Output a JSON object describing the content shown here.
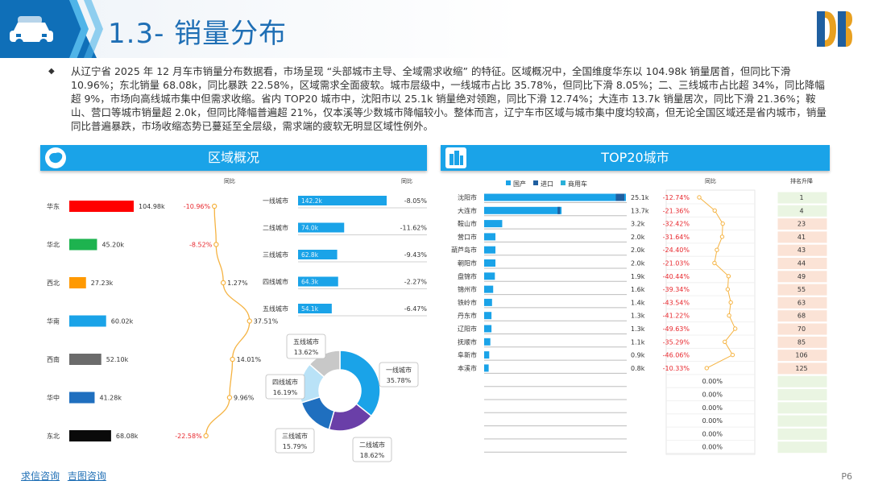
{
  "page": {
    "title": "1.3- 销量分布",
    "summary": "从辽宁省 2025 年 12 月车市销量分布数据看，市场呈现 “头部城市主导、全域需求收缩” 的特征。区域概况中，全国维度华东以 104.98k 销量居首，但同比下滑 10.96%；东北销量 68.08k，同比暴跌 22.58%，区域需求全面疲软。城市层级中，一线城市占比 35.78%，但同比下滑 8.05%；二、三线城市占比超 34%，同比降幅超 9%，市场向高线城市集中但需求收缩。省内 TOP20 城市中，沈阳市以 25.1k 销量绝对领跑，同比下滑 12.74%；大连市 13.7k 销量居次，同比下滑 21.36%；鞍山、营口等城市销量超 2.0k，但同比降幅普遍超 21%，仅本溪等少数城市降幅较小。整体而言，辽宁车市区域与城市集中度均较高，但无论全国区域还是省内城市，销量同比普遍暴跌，市场收缩态势已蔓延至全层级，需求端的疲软无明显区域性例外。",
    "page_number": "P6",
    "footer_links": [
      "求信咨询",
      "吉图咨询"
    ],
    "colors": {
      "accent": "#1aa3e8",
      "title": "#1f6fb5",
      "negative": "#e8282e",
      "line": "#f5b342"
    }
  },
  "region_panel": {
    "title": "区域概况",
    "yoy_label": "同比",
    "regions": [
      {
        "name": "华东",
        "value_label": "104.98k",
        "value": 104.98,
        "yoy_label": "-10.96%",
        "yoy": -10.96,
        "color": "#ff0000"
      },
      {
        "name": "华北",
        "value_label": "45.20k",
        "value": 45.2,
        "yoy_label": "-8.52%",
        "yoy": -8.52,
        "color": "#1db34f"
      },
      {
        "name": "西北",
        "value_label": "27.23k",
        "value": 27.23,
        "yoy_label": "1.27%",
        "yoy": 1.27,
        "color": "#ff9900"
      },
      {
        "name": "华南",
        "value_label": "60.02k",
        "value": 60.02,
        "yoy_label": "37.51%",
        "yoy": 37.51,
        "color": "#1aa3e8"
      },
      {
        "name": "西南",
        "value_label": "52.10k",
        "value": 52.1,
        "yoy_label": "14.01%",
        "yoy": 14.01,
        "color": "#6b6b6b"
      },
      {
        "name": "华中",
        "value_label": "41.28k",
        "value": 41.28,
        "yoy_label": "9.96%",
        "yoy": 9.96,
        "color": "#1f6fbf"
      },
      {
        "name": "东北",
        "value_label": "68.08k",
        "value": 68.08,
        "yoy_label": "-22.58%",
        "yoy": -22.58,
        "color": "#0a0a0a"
      }
    ]
  },
  "tier_panel": {
    "yoy_label": "同比",
    "tiers": [
      {
        "name": "一线城市",
        "value_label": "142.2k",
        "value": 142.2,
        "yoy_label": "-8.05%"
      },
      {
        "name": "二线城市",
        "value_label": "74.0k",
        "value": 74.0,
        "yoy_label": "-11.62%"
      },
      {
        "name": "三线城市",
        "value_label": "62.8k",
        "value": 62.8,
        "yoy_label": "-9.43%"
      },
      {
        "name": "四线城市",
        "value_label": "64.3k",
        "value": 64.3,
        "yoy_label": "-2.27%"
      },
      {
        "name": "五线城市",
        "value_label": "54.1k",
        "value": 54.1,
        "yoy_label": "-6.47%"
      }
    ],
    "donut": [
      {
        "name": "一线城市",
        "pct_label": "35.78%",
        "pct": 35.78,
        "color": "#1aa3e8"
      },
      {
        "name": "二线城市",
        "pct_label": "18.62%",
        "pct": 18.62,
        "color": "#6a3fa8"
      },
      {
        "name": "三线城市",
        "pct_label": "15.79%",
        "pct": 15.79,
        "color": "#1f6fbf"
      },
      {
        "name": "四线城市",
        "pct_label": "16.19%",
        "pct": 16.19,
        "color": "#b9e2f7"
      },
      {
        "name": "五线城市",
        "pct_label": "13.62%",
        "pct": 13.62,
        "color": "#c8c8c8"
      }
    ]
  },
  "top20_panel": {
    "title": "TOP20城市",
    "legend": [
      {
        "name": "国产",
        "color": "#1aa3e8"
      },
      {
        "name": "进口",
        "color": "#1f5fa0"
      },
      {
        "name": "商用车",
        "color": "#2ab0d8"
      }
    ],
    "yoy_label": "同比",
    "rank_label": "排名升降",
    "cities": [
      {
        "name": "沈阳市",
        "value_label": "25.1k",
        "value": 25.1,
        "import_share": 0.06,
        "yoy_label": "-12.74%",
        "yoy": -12.74,
        "rank": "1"
      },
      {
        "name": "大连市",
        "value_label": "13.7k",
        "value": 13.7,
        "import_share": 0.03,
        "yoy_label": "-21.36%",
        "yoy": -21.36,
        "rank": "4"
      },
      {
        "name": "鞍山市",
        "value_label": "3.2k",
        "value": 3.2,
        "import_share": 0,
        "yoy_label": "-32.42%",
        "yoy": -32.42,
        "rank": "23"
      },
      {
        "name": "营口市",
        "value_label": "2.0k",
        "value": 2.0,
        "import_share": 0,
        "yoy_label": "-31.64%",
        "yoy": -31.64,
        "rank": "41"
      },
      {
        "name": "葫芦岛市",
        "value_label": "2.0k",
        "value": 2.0,
        "import_share": 0,
        "yoy_label": "-24.40%",
        "yoy": -24.4,
        "rank": "43"
      },
      {
        "name": "朝阳市",
        "value_label": "2.0k",
        "value": 2.0,
        "import_share": 0,
        "yoy_label": "-21.03%",
        "yoy": -21.03,
        "rank": "44"
      },
      {
        "name": "盘锦市",
        "value_label": "1.9k",
        "value": 1.9,
        "import_share": 0,
        "yoy_label": "-40.44%",
        "yoy": -40.44,
        "rank": "49"
      },
      {
        "name": "锦州市",
        "value_label": "1.6k",
        "value": 1.6,
        "import_share": 0,
        "yoy_label": "-39.34%",
        "yoy": -39.34,
        "rank": "55"
      },
      {
        "name": "铁岭市",
        "value_label": "1.4k",
        "value": 1.4,
        "import_share": 0,
        "yoy_label": "-43.54%",
        "yoy": -43.54,
        "rank": "63"
      },
      {
        "name": "丹东市",
        "value_label": "1.3k",
        "value": 1.3,
        "import_share": 0,
        "yoy_label": "-41.22%",
        "yoy": -41.22,
        "rank": "68"
      },
      {
        "name": "辽阳市",
        "value_label": "1.3k",
        "value": 1.3,
        "import_share": 0,
        "yoy_label": "-49.63%",
        "yoy": -49.63,
        "rank": "70"
      },
      {
        "name": "抚顺市",
        "value_label": "1.1k",
        "value": 1.1,
        "import_share": 0,
        "yoy_label": "-35.29%",
        "yoy": -35.29,
        "rank": "85"
      },
      {
        "name": "阜新市",
        "value_label": "0.9k",
        "value": 0.9,
        "import_share": 0,
        "yoy_label": "-46.06%",
        "yoy": -46.06,
        "rank": "106"
      },
      {
        "name": "本溪市",
        "value_label": "0.8k",
        "value": 0.8,
        "import_share": 0,
        "yoy_label": "-10.33%",
        "yoy": -10.33,
        "rank": "125"
      }
    ],
    "empty_rows": [
      {
        "yoy_label": "0.00%"
      },
      {
        "yoy_label": "0.00%"
      },
      {
        "yoy_label": "0.00%"
      },
      {
        "yoy_label": "0.00%"
      },
      {
        "yoy_label": "0.00%"
      },
      {
        "yoy_label": "0.00%"
      }
    ]
  },
  "chart_data": [
    {
      "type": "bar",
      "categories": [
        "华东",
        "华北",
        "西北",
        "华南",
        "西南",
        "华中",
        "东北"
      ],
      "series": [
        {
          "values": [
            104.98,
            45.2,
            27.23,
            60.02,
            52.1,
            41.28,
            68.08
          ]
        },
        {
          "name": "同比",
          "values": [
            -10.96,
            -8.52,
            1.27,
            37.51,
            14.01,
            9.96,
            -22.58
          ]
        }
      ]
    },
    {
      "type": "bar",
      "categories": [
        "一线城市",
        "二线城市",
        "三线城市",
        "四线城市",
        "五线城市"
      ],
      "series": [
        {
          "values": [
            142.2,
            74.0,
            62.8,
            64.3,
            54.1
          ]
        },
        {
          "name": "同比",
          "values": [
            -8.05,
            -11.62,
            -9.43,
            -2.27,
            -6.47
          ]
        }
      ]
    },
    {
      "type": "pie",
      "categories": [
        "一线城市",
        "二线城市",
        "三线城市",
        "四线城市",
        "五线城市"
      ],
      "values": [
        35.78,
        18.62,
        15.79,
        16.19,
        13.62
      ]
    },
    {
      "type": "bar",
      "title": "TOP20城市",
      "categories": [
        "沈阳市",
        "大连市",
        "鞍山市",
        "营口市",
        "葫芦岛市",
        "朝阳市",
        "盘锦市",
        "锦州市",
        "铁岭市",
        "丹东市",
        "辽阳市",
        "抚顺市",
        "阜新市",
        "本溪市"
      ],
      "series": [
        {
          "values": [
            25.1,
            13.7,
            3.2,
            2.0,
            2.0,
            2.0,
            1.9,
            1.6,
            1.4,
            1.3,
            1.3,
            1.1,
            0.9,
            0.8
          ]
        },
        {
          "name": "同比",
          "values": [
            -12.74,
            -21.36,
            -32.42,
            -31.64,
            -24.4,
            -21.03,
            -40.44,
            -39.34,
            -43.54,
            -41.22,
            -49.63,
            -35.29,
            -46.06,
            -10.33
          ]
        }
      ],
      "legend": [
        "国产",
        "进口",
        "商用车"
      ]
    }
  ]
}
